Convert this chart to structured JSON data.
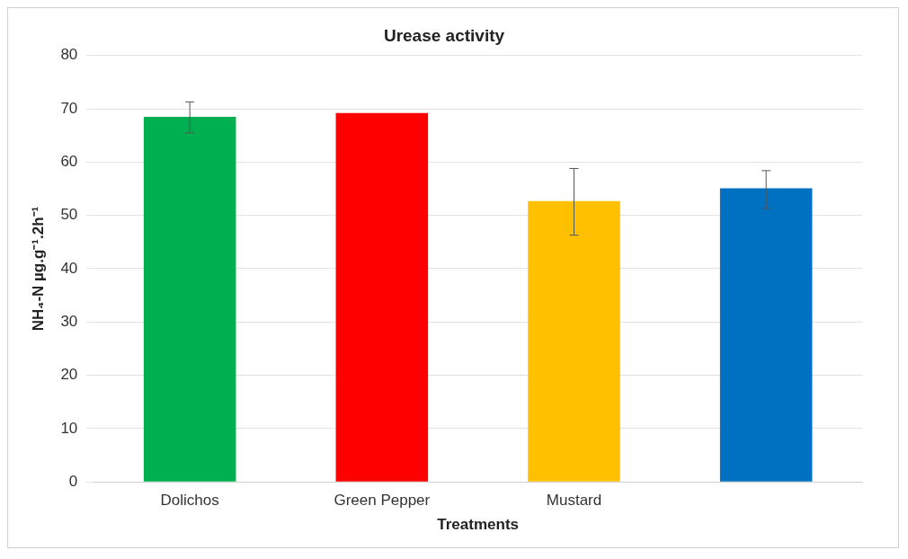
{
  "chart_data": {
    "type": "bar",
    "title": "Urease activity",
    "xlabel": "Treatments",
    "ylabel": "NH₄-N µg.g⁻¹.2h⁻¹",
    "categories": [
      "Dolichos",
      "Green Pepper",
      "Mustard",
      null
    ],
    "values": [
      68.5,
      69.2,
      52.7,
      55.1
    ],
    "colors": [
      "#00b050",
      "#ff0000",
      "#ffc000",
      "#0070c0"
    ],
    "errors": [
      [
        65.5,
        71.3
      ],
      null,
      [
        46.3,
        58.8
      ],
      [
        51.3,
        58.4
      ]
    ],
    "ylim": [
      0,
      80
    ],
    "yticks": [
      0,
      10,
      20,
      30,
      40,
      50,
      60,
      70,
      80
    ],
    "grid": "y"
  }
}
